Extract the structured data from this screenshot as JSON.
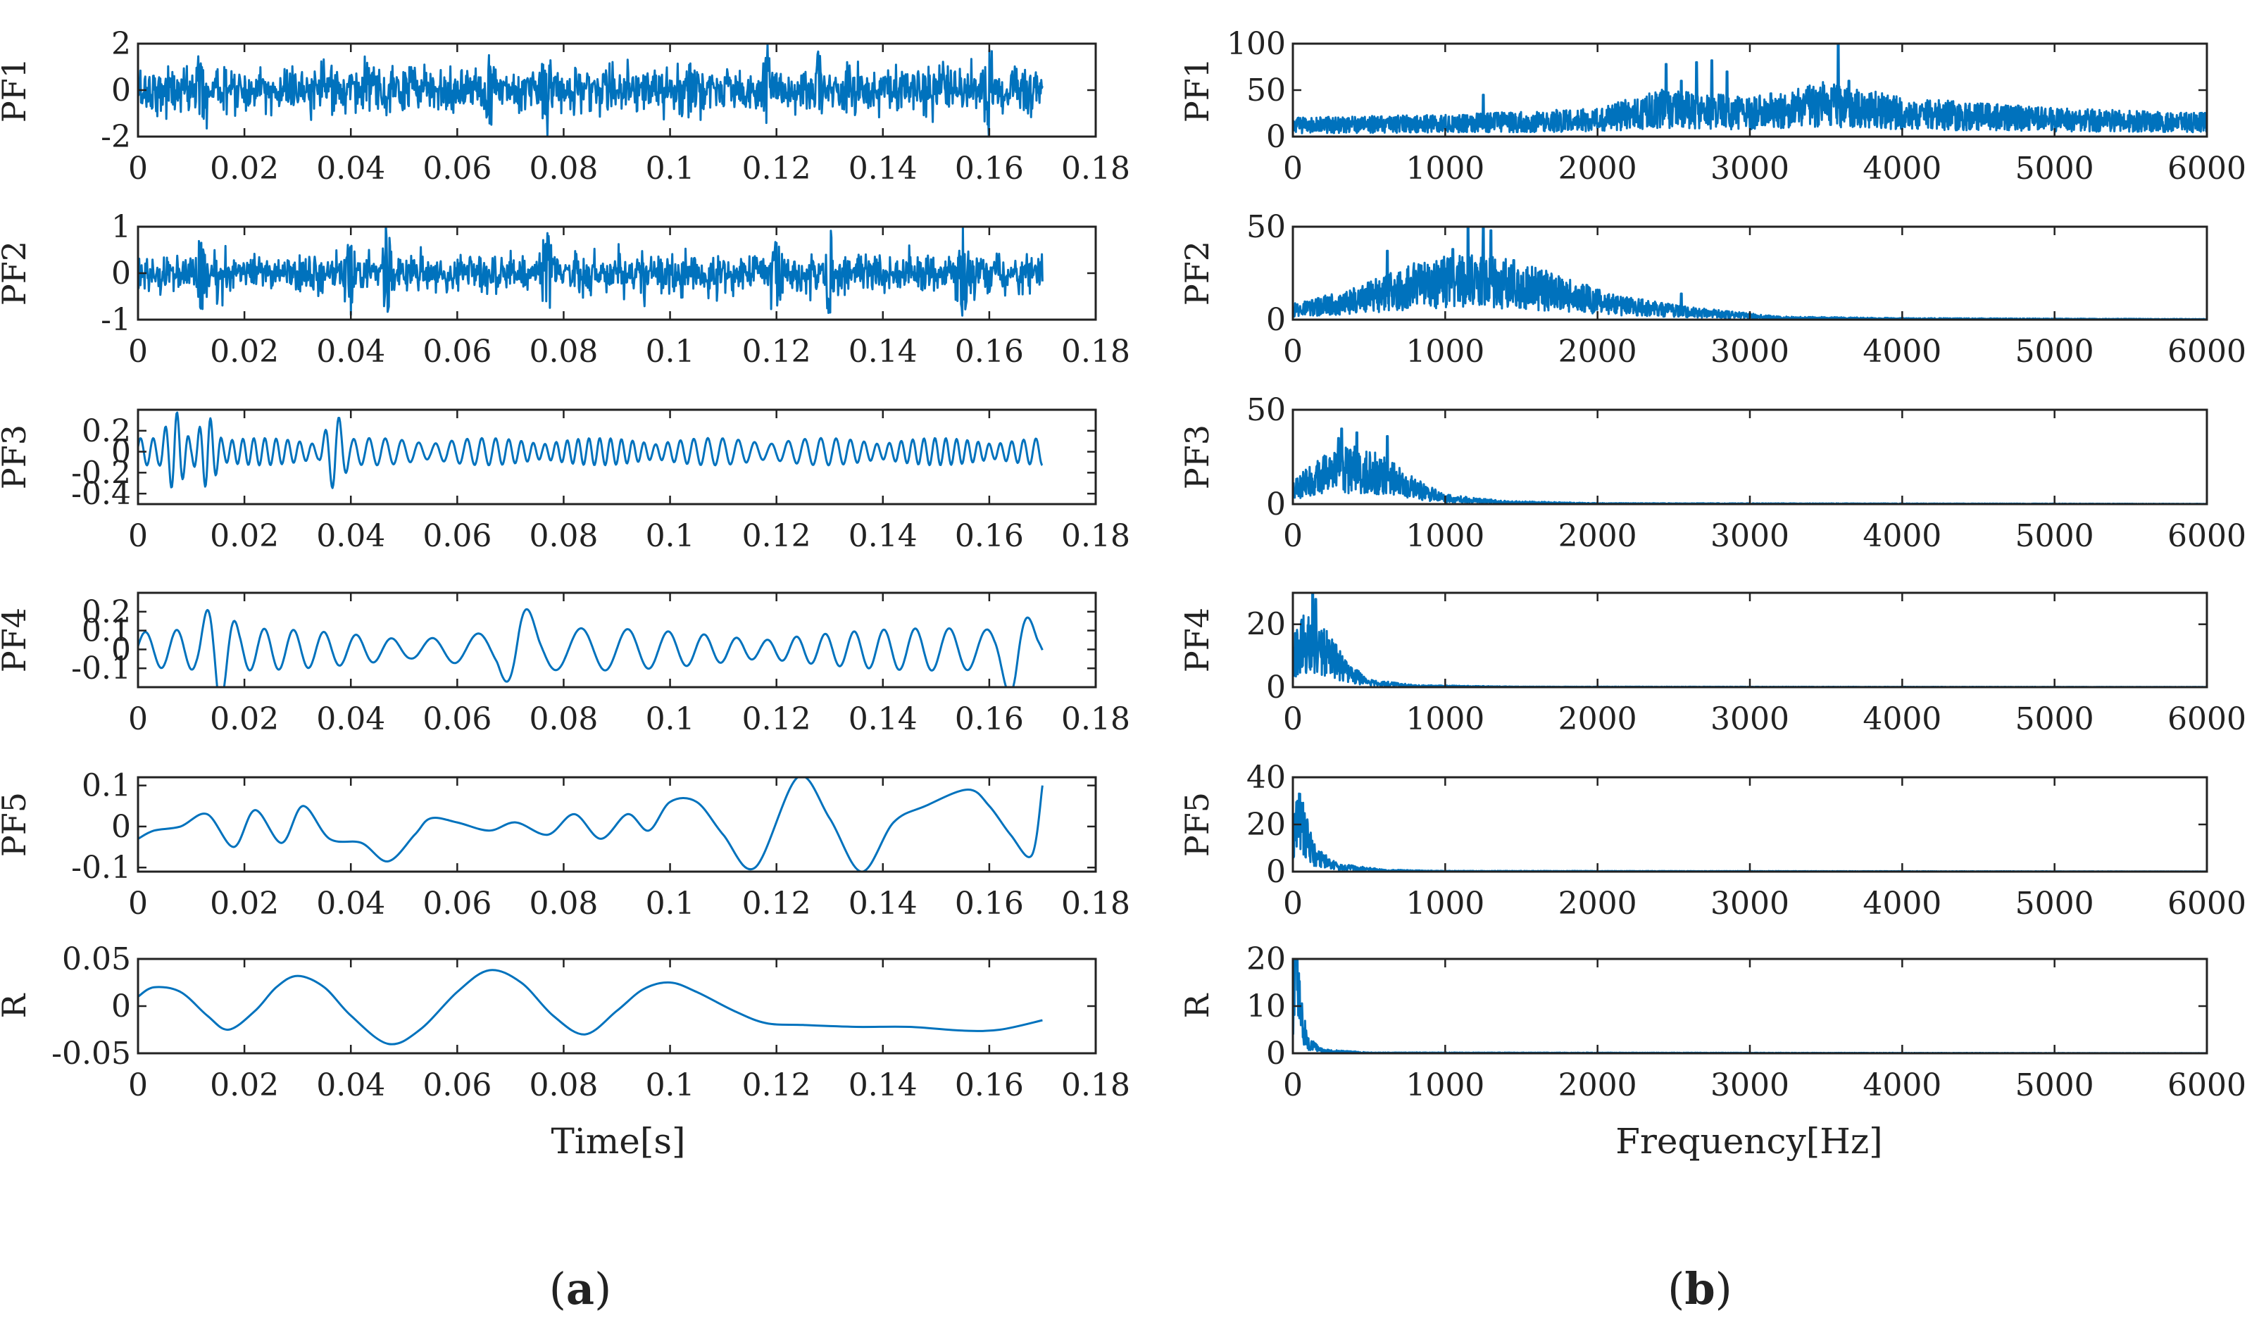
{
  "figure": {
    "trace_color": "#0072BD",
    "panels": {
      "a": {
        "prefix": "(",
        "letter": "a",
        "suffix": ")"
      },
      "b": {
        "prefix": "(",
        "letter": "b",
        "suffix": ")"
      }
    }
  },
  "chart_data": [
    {
      "id": "a",
      "type": "line",
      "title": "",
      "description_kind": "time-domain PF components",
      "xlabel": "Time[s]",
      "xlim": [
        0,
        0.18
      ],
      "xticks": [
        "0",
        "0.02",
        "0.04",
        "0.06",
        "0.08",
        "0.1",
        "0.12",
        "0.14",
        "0.16",
        "0.18"
      ],
      "x_data_range": [
        0,
        0.17
      ],
      "series": [
        {
          "name": "PF1",
          "ylim": [
            -2,
            2
          ],
          "yticks": [
            "2",
            "0",
            "-2"
          ],
          "ytick_values": [
            2,
            0,
            -2
          ],
          "signal": "broadband noise",
          "amplitude": 0.55,
          "peak": 1.4,
          "peaks_at": [
            0.012,
            0.066,
            0.077,
            0.118,
            0.128,
            0.16
          ]
        },
        {
          "name": "PF2",
          "ylim": [
            -1,
            1
          ],
          "yticks": [
            "1",
            "0",
            "-1"
          ],
          "ytick_values": [
            1,
            0,
            -1
          ],
          "signal": "broadband noise",
          "amplitude": 0.22,
          "peak": 0.85,
          "peaks_at": [
            0.012,
            0.04,
            0.047,
            0.077,
            0.12,
            0.13,
            0.155
          ]
        },
        {
          "name": "PF3",
          "ylim": [
            -0.5,
            0.4
          ],
          "yticks": [
            "0.2",
            "0",
            "-0.2",
            "-0.4"
          ],
          "ytick_values": [
            0.2,
            0,
            -0.2,
            -0.4
          ],
          "signal": "band-limited oscillation",
          "amplitude": 0.1,
          "peak": 0.4,
          "peaks_at": [
            0.007,
            0.013,
            0.037
          ]
        },
        {
          "name": "PF4",
          "ylim": [
            -0.2,
            0.3
          ],
          "yticks": [
            "0.2",
            "0.1",
            "0",
            "-0.1"
          ],
          "ytick_values": [
            0.2,
            0.1,
            0,
            -0.1
          ],
          "signal": "low-frequency oscillation",
          "amplitude": 0.08,
          "peak": 0.28,
          "peaks_at": [
            0.015,
            0.0715,
            0.165
          ]
        },
        {
          "name": "PF5",
          "x": [
            0,
            0.003,
            0.008,
            0.013,
            0.018,
            0.022,
            0.027,
            0.031,
            0.036,
            0.042,
            0.047,
            0.052,
            0.055,
            0.06,
            0.066,
            0.071,
            0.077,
            0.082,
            0.087,
            0.092,
            0.096,
            0.1,
            0.105,
            0.11,
            0.116,
            0.124,
            0.13,
            0.136,
            0.142,
            0.148,
            0.156,
            0.16,
            0.164,
            0.168,
            0.17
          ],
          "y": [
            -0.03,
            -0.01,
            0.0,
            0.03,
            -0.05,
            0.04,
            -0.04,
            0.05,
            -0.03,
            -0.04,
            -0.085,
            -0.02,
            0.02,
            0.01,
            -0.01,
            0.01,
            -0.02,
            0.03,
            -0.03,
            0.03,
            -0.01,
            0.06,
            0.06,
            -0.02,
            -0.1,
            0.12,
            0.02,
            -0.11,
            0.01,
            0.05,
            0.09,
            0.05,
            -0.02,
            -0.07,
            0.1
          ],
          "ylim": [
            -0.11,
            0.12
          ],
          "yticks": [
            "0.1",
            "0",
            "-0.1"
          ],
          "ytick_values": [
            0.1,
            0,
            -0.1
          ]
        },
        {
          "name": "R",
          "x": [
            0,
            0.003,
            0.008,
            0.013,
            0.017,
            0.022,
            0.026,
            0.03,
            0.035,
            0.04,
            0.047,
            0.053,
            0.06,
            0.066,
            0.072,
            0.078,
            0.084,
            0.09,
            0.095,
            0.1,
            0.105,
            0.112,
            0.118,
            0.125,
            0.135,
            0.145,
            0.155,
            0.162,
            0.17
          ],
          "y": [
            0.01,
            0.02,
            0.015,
            -0.01,
            -0.025,
            -0.005,
            0.02,
            0.032,
            0.02,
            -0.01,
            -0.04,
            -0.025,
            0.015,
            0.038,
            0.025,
            -0.01,
            -0.03,
            -0.005,
            0.018,
            0.025,
            0.015,
            -0.005,
            -0.018,
            -0.02,
            -0.022,
            -0.022,
            -0.026,
            -0.025,
            -0.015
          ],
          "ylim": [
            -0.05,
            0.05
          ],
          "yticks": [
            "0.05",
            "0",
            "-0.05"
          ],
          "ytick_values": [
            0.05,
            0,
            -0.05
          ]
        }
      ]
    },
    {
      "id": "b",
      "type": "line",
      "title": "",
      "description_kind": "frequency spectra of PF components",
      "xlabel": "Frequency[Hz]",
      "xlim": [
        0,
        6000
      ],
      "xticks": [
        "0",
        "1000",
        "2000",
        "3000",
        "4000",
        "5000",
        "6000"
      ],
      "series": [
        {
          "name": "PF1",
          "ylim": [
            0,
            100
          ],
          "yticks": [
            "100",
            "50",
            "0"
          ],
          "ytick_values": [
            100,
            50,
            0
          ],
          "envelope": [
            [
              0,
              12
            ],
            [
              1000,
              14
            ],
            [
              2000,
              18
            ],
            [
              2400,
              30
            ],
            [
              3000,
              25
            ],
            [
              3500,
              35
            ],
            [
              4000,
              25
            ],
            [
              5000,
              18
            ],
            [
              6000,
              15
            ]
          ],
          "spikes": [
            [
              1250,
              45
            ],
            [
              2450,
              78
            ],
            [
              2550,
              60
            ],
            [
              2650,
              80
            ],
            [
              2750,
              82
            ],
            [
              2850,
              70
            ],
            [
              3350,
              40
            ],
            [
              3580,
              100
            ],
            [
              3650,
              60
            ]
          ]
        },
        {
          "name": "PF2",
          "ylim": [
            0,
            50
          ],
          "yticks": [
            "50",
            "0"
          ],
          "ytick_values": [
            50,
            0
          ],
          "envelope": [
            [
              0,
              5
            ],
            [
              400,
              10
            ],
            [
              800,
              18
            ],
            [
              1200,
              22
            ],
            [
              1700,
              15
            ],
            [
              2100,
              8
            ],
            [
              2600,
              4
            ],
            [
              3200,
              1
            ],
            [
              4000,
              0.5
            ],
            [
              6000,
              0.2
            ]
          ],
          "spikes": [
            [
              620,
              37
            ],
            [
              1050,
              38
            ],
            [
              1150,
              50
            ],
            [
              1250,
              50
            ],
            [
              1300,
              48
            ],
            [
              1450,
              32
            ],
            [
              2550,
              14
            ]
          ]
        },
        {
          "name": "PF3",
          "ylim": [
            0,
            50
          ],
          "yticks": [
            "50",
            "0"
          ],
          "ytick_values": [
            50,
            0
          ],
          "envelope": [
            [
              0,
              8
            ],
            [
              200,
              15
            ],
            [
              400,
              20
            ],
            [
              600,
              15
            ],
            [
              800,
              8
            ],
            [
              1000,
              3
            ],
            [
              1400,
              1
            ],
            [
              2000,
              0.3
            ],
            [
              6000,
              0.1
            ]
          ],
          "spikes": [
            [
              300,
              35
            ],
            [
              320,
              40
            ],
            [
              420,
              38
            ],
            [
              620,
              36
            ]
          ]
        },
        {
          "name": "PF4",
          "ylim": [
            0,
            30
          ],
          "yticks": [
            "20",
            "0"
          ],
          "ytick_values": [
            20,
            0
          ],
          "envelope": [
            [
              0,
              10
            ],
            [
              100,
              15
            ],
            [
              200,
              12
            ],
            [
              350,
              5
            ],
            [
              500,
              1.5
            ],
            [
              800,
              0.4
            ],
            [
              1500,
              0.1
            ],
            [
              6000,
              0.05
            ]
          ],
          "spikes": [
            [
              130,
              30
            ],
            [
              150,
              28
            ]
          ]
        },
        {
          "name": "PF5",
          "ylim": [
            0,
            40
          ],
          "yticks": [
            "40",
            "20",
            "0"
          ],
          "ytick_values": [
            40,
            20,
            0
          ],
          "envelope": [
            [
              0,
              10
            ],
            [
              40,
              25
            ],
            [
              80,
              15
            ],
            [
              150,
              6
            ],
            [
              300,
              2
            ],
            [
              600,
              0.5
            ],
            [
              1000,
              0.2
            ],
            [
              6000,
              0.05
            ]
          ],
          "spikes": [
            [
              45,
              33
            ]
          ]
        },
        {
          "name": "R",
          "ylim": [
            0,
            20
          ],
          "yticks": [
            "20",
            "10",
            "0"
          ],
          "ytick_values": [
            20,
            10,
            0
          ],
          "envelope": [
            [
              0,
              5
            ],
            [
              20,
              20
            ],
            [
              50,
              8
            ],
            [
              100,
              2
            ],
            [
              200,
              0.5
            ],
            [
              500,
              0.1
            ],
            [
              6000,
              0.02
            ]
          ],
          "spikes": [
            [
              20,
              20
            ]
          ]
        }
      ]
    }
  ]
}
